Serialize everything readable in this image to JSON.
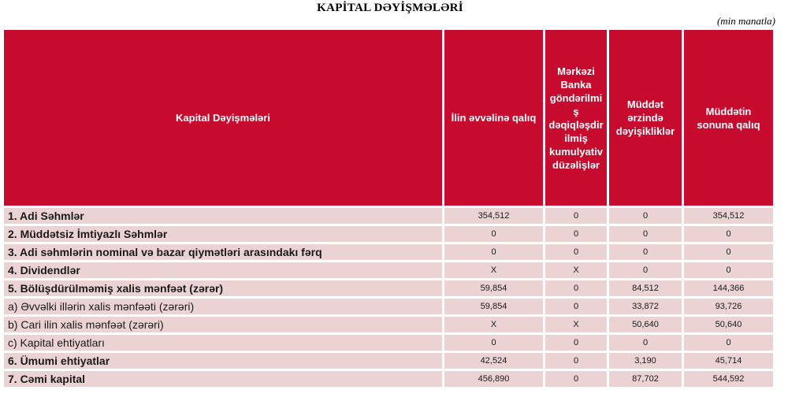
{
  "title": "KAPİTAL DƏYİŞMƏLƏRİ",
  "unit_note": "(min manatla)",
  "colors": {
    "header_red": "#c60b2f",
    "row_pink": "#ebd3d4",
    "text_dark": "#1a1a1a",
    "header_text": "#ffffff"
  },
  "table": {
    "columns": [
      {
        "label": "Kapital Dəyişmələri"
      },
      {
        "label": "İlin əvvəlinə qalıq"
      },
      {
        "label": "Mərkəzi\nBanka\ngöndərilmi\nş\ndəqiqləşdir\nilmiş\nkumulyativ\ndüzəlişlər"
      },
      {
        "label": "Müddət\nərzində\ndəyişikliklər"
      },
      {
        "label": "Müddətin\nsonuna qalıq"
      }
    ],
    "rows": [
      {
        "label": "1. Adi Səhmlər",
        "bold": true,
        "values": [
          "354,512",
          "0",
          "0",
          "354,512"
        ]
      },
      {
        "label": "2. Müddətsiz İmtiyazlı Səhmlər",
        "bold": true,
        "values": [
          "0",
          "0",
          "0",
          "0"
        ]
      },
      {
        "label": "3. Adi səhmlərin nominal və bazar qiymətləri arasındakı fərq",
        "bold": true,
        "values": [
          "0",
          "0",
          "0",
          "0"
        ]
      },
      {
        "label": "4. Dividendlər",
        "bold": true,
        "values": [
          "X",
          "X",
          "0",
          "0"
        ]
      },
      {
        "label": "5. Bölüşdürülməmiş xalis mənfəət (zərər)",
        "bold": true,
        "values": [
          "59,854",
          "0",
          "84,512",
          "144,366"
        ]
      },
      {
        "label": "a) Əvvəlki illərin xalis mənfəəti (zərəri)",
        "bold": false,
        "values": [
          "59,854",
          "0",
          "33,872",
          "93,726"
        ]
      },
      {
        "label": "b) Cari ilin xalis mənfəət (zərəri)",
        "bold": false,
        "values": [
          "X",
          "X",
          "50,640",
          "50,640"
        ]
      },
      {
        "label": "c) Kapital ehtiyatları",
        "bold": false,
        "values": [
          "0",
          "0",
          "0",
          "0"
        ]
      },
      {
        "label": "6. Ümumi ehtiyatlar",
        "bold": true,
        "values": [
          "42,524",
          "0",
          "3,190",
          "45,714"
        ]
      },
      {
        "label": "7. Cəmi kapital",
        "bold": true,
        "values": [
          "456,890",
          "0",
          "87,702",
          "544,592"
        ]
      }
    ]
  }
}
